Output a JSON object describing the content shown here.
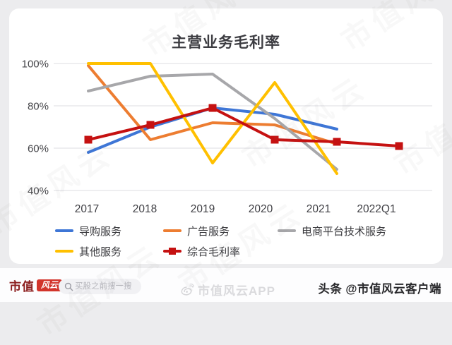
{
  "chart_data": {
    "type": "line",
    "title": "主营业务毛利率",
    "categories": [
      "2017",
      "2018",
      "2019",
      "2020",
      "2021",
      "2022Q1"
    ],
    "y_ticks": [
      "100%",
      "80%",
      "60%",
      "40%"
    ],
    "y_tick_values": [
      100,
      80,
      60,
      40
    ],
    "ylim": [
      40,
      100
    ],
    "grid": true,
    "legend_position": "bottom",
    "series": [
      {
        "name": "导购服务",
        "color": "#3E76D6",
        "marker": "none",
        "values": [
          58,
          70,
          79,
          76,
          69,
          null
        ]
      },
      {
        "name": "广告服务",
        "color": "#ED7D31",
        "marker": "none",
        "values": [
          99,
          64,
          72,
          71,
          62,
          null
        ]
      },
      {
        "name": "电商平台技术服务",
        "color": "#A7A7AA",
        "marker": "none",
        "values": [
          87,
          94,
          95,
          74,
          50,
          null
        ]
      },
      {
        "name": "其他服务",
        "color": "#FFC000",
        "marker": "none",
        "values": [
          100,
          100,
          53,
          91,
          48,
          null
        ]
      },
      {
        "name": "综合毛利率",
        "color": "#C51111",
        "marker": "square",
        "values": [
          64,
          71,
          79,
          64,
          63,
          61
        ]
      }
    ]
  },
  "watermark": {
    "text": "市值风云"
  },
  "footer": {
    "logo_text": "市值",
    "logo_badge": "风云",
    "search_placeholder": "买股之前搜一搜",
    "center_app_text": "市值风云APP",
    "right_text": "头条 @市值风云客户端"
  }
}
